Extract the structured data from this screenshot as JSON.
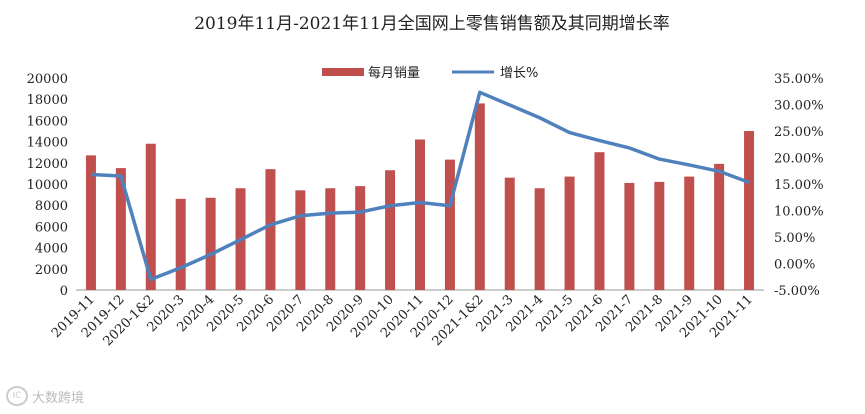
{
  "chart_data": {
    "type": "bar+line",
    "title": "2019年11月-2021年11月全国网上零售销售额及其同期增长率",
    "categories": [
      "2019-11",
      "2019-12",
      "2020-1&2",
      "2020-3",
      "2020-4",
      "2020-5",
      "2020-6",
      "2020-7",
      "2020-8",
      "2020-9",
      "2020-10",
      "2020-11",
      "2020-12",
      "2021-1&2",
      "2021-3",
      "2021-4",
      "2021-5",
      "2021-6",
      "2021-7",
      "2021-8",
      "2021-9",
      "2021-10",
      "2021-11"
    ],
    "series": [
      {
        "name": "每月销量",
        "type": "bar",
        "axis": "left",
        "color": "#c0504d",
        "values": [
          12700,
          11500,
          13800,
          8600,
          8700,
          9600,
          11400,
          9400,
          9600,
          9800,
          11300,
          14200,
          12300,
          17600,
          10600,
          9600,
          10700,
          13000,
          10100,
          10200,
          10700,
          11900,
          15000
        ]
      },
      {
        "name": "增长%",
        "type": "line",
        "axis": "right",
        "color": "#4f81bd",
        "values": [
          16.8,
          16.5,
          -3.0,
          -0.8,
          1.7,
          4.5,
          7.3,
          9.0,
          9.5,
          9.7,
          10.9,
          11.5,
          10.9,
          32.3,
          29.9,
          27.5,
          24.7,
          23.2,
          21.8,
          19.7,
          18.6,
          17.4,
          15.3
        ]
      }
    ],
    "y_left": {
      "min": 0,
      "max": 20000,
      "step": 2000,
      "ticks": [
        "0",
        "2000",
        "4000",
        "6000",
        "8000",
        "10000",
        "12000",
        "14000",
        "16000",
        "18000",
        "20000"
      ]
    },
    "y_right": {
      "min": -5,
      "max": 35,
      "step": 5,
      "ticks": [
        "-5.00%",
        "0.00%",
        "5.00%",
        "10.00%",
        "15.00%",
        "20.00%",
        "25.00%",
        "30.00%",
        "35.00%"
      ]
    },
    "legend": {
      "placement": "top-center",
      "items": [
        "每月销量",
        "增长%"
      ]
    },
    "grid": false
  },
  "watermark": {
    "logo": "IC",
    "text": "大数跨境"
  }
}
